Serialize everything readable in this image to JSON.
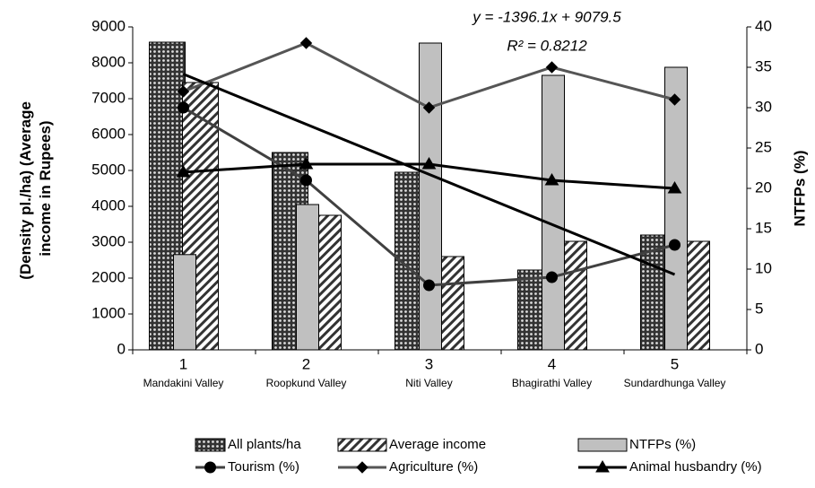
{
  "chart_data": {
    "type": "bar-line-combo",
    "categories": [
      "1",
      "2",
      "3",
      "4",
      "5"
    ],
    "category_sublabels": [
      "Mandakini  Valley",
      "Roopkund Valley",
      "Niti Valley",
      "Bhagirathi Valley",
      "Sundardhunga Valley"
    ],
    "y_label": [
      "(Density pl./ha) (Average",
      "income in Rupees)"
    ],
    "y2_label": "NTFPs (%)",
    "ylim": [
      0,
      9000
    ],
    "yticks": [
      0,
      1000,
      2000,
      3000,
      4000,
      5000,
      6000,
      7000,
      8000,
      9000
    ],
    "y2lim": [
      0,
      40
    ],
    "y2ticks": [
      0,
      5,
      10,
      15,
      20,
      25,
      30,
      35,
      40
    ],
    "series": [
      {
        "name": "All plants/ha",
        "kind": "bar",
        "pattern": "dots",
        "color": "#333333",
        "values": [
          8575,
          5500,
          4950,
          2225,
          3200
        ]
      },
      {
        "name": "Average income",
        "kind": "bar",
        "pattern": "hatch",
        "color": "#333333",
        "values": [
          7450,
          3750,
          2600,
          3025,
          3025
        ]
      },
      {
        "name": "NTFPs (%)",
        "kind": "bar",
        "axis": "y2",
        "color": "#c0c0c0",
        "values": [
          11.8,
          18,
          38,
          34,
          35
        ]
      },
      {
        "name": "Tourism (%)",
        "kind": "line",
        "axis": "y2",
        "marker": "circle",
        "color": "#404040",
        "values": [
          30,
          21,
          8,
          9,
          13
        ]
      },
      {
        "name": "Agriculture (%)",
        "kind": "line",
        "axis": "y2",
        "marker": "diamond",
        "color": "#555555",
        "values": [
          32,
          38,
          30,
          35,
          31
        ]
      },
      {
        "name": "Animal husbandry (%)",
        "kind": "line",
        "axis": "y2",
        "marker": "triangle",
        "color": "#000000",
        "values": [
          22,
          23,
          23,
          21,
          20
        ]
      }
    ],
    "trendline": {
      "slope": -1396.1,
      "intercept": 9079.5,
      "equation": "y = -1396.1x + 9079.5",
      "r_squared": "R² = 0.8212"
    }
  }
}
